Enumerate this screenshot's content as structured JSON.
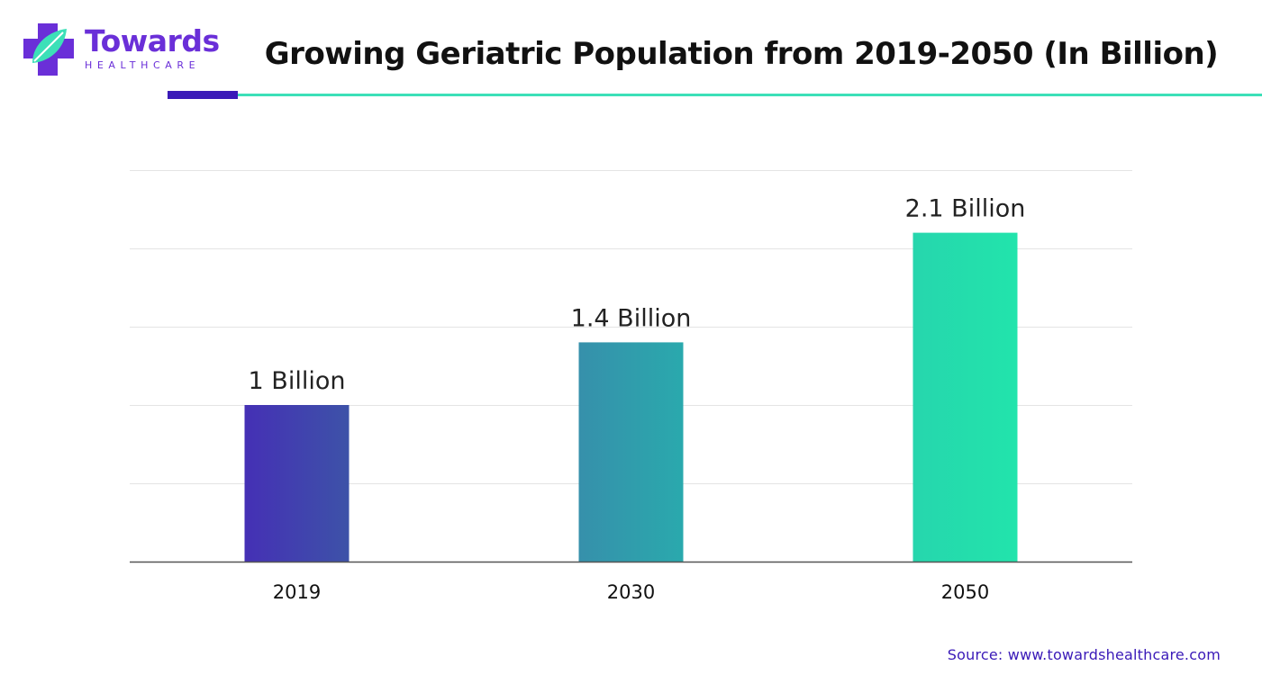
{
  "brand": {
    "name": "Towards",
    "sub": "HEALTHCARE"
  },
  "title": "Growing Geriatric Population from 2019-2050 (In Billion)",
  "source": "Source: www.towardshealthcare.com",
  "colors": {
    "purple": "#3a1ab8",
    "teal": "#2ea3ae",
    "green": "#24e0ad",
    "grid": "#e4e4e4",
    "axis": "#555555"
  },
  "chart_data": {
    "type": "bar",
    "title": "Growing Geriatric Population from 2019-2050 (In Billion)",
    "categories": [
      "2019",
      "2030",
      "2050"
    ],
    "values": [
      1,
      1.4,
      2.1
    ],
    "data_labels": [
      "1 Billion",
      "1.4 Billion",
      "2.1 Billion"
    ],
    "bar_colors": [
      [
        "#4530b5",
        "#3d52a8"
      ],
      [
        "#3690ab",
        "#2aa9ad"
      ],
      [
        "#26d6ad",
        "#22e4ac"
      ]
    ],
    "xlabel": "",
    "ylabel": "",
    "ylim": [
      0,
      2.5
    ],
    "grid": true,
    "legend": false
  }
}
